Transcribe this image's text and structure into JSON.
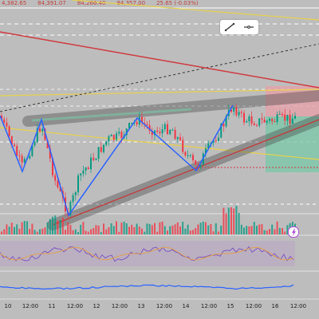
{
  "ohlc": [
    "4,382.65",
    "84,391.07",
    "84,266.40",
    "84,357.00",
    "25.65 (-0.03%)"
  ],
  "time_axis": [
    "10",
    "12:00",
    "11",
    "12:00",
    "12",
    "12:00",
    "13",
    "12:00",
    "14",
    "12:00",
    "15",
    "12:00",
    "16",
    "12:00"
  ],
  "toolbar": {
    "icons": [
      "pencil-line-icon",
      "horizontal-line-icon"
    ]
  },
  "colors": {
    "background": "#bdbdbd",
    "up_candle": "#089981",
    "down_candle": "#f23645",
    "trendline_red": "#d0393f",
    "zigzag_blue": "#2962ff",
    "channel_yellow": "#e8d24a",
    "long_profit_zone": "#7ac8a8",
    "long_loss_zone": "#e8a0a8",
    "indicator_blue": "#2962ff"
  },
  "alert_icon": "lightning-bolt-icon"
}
